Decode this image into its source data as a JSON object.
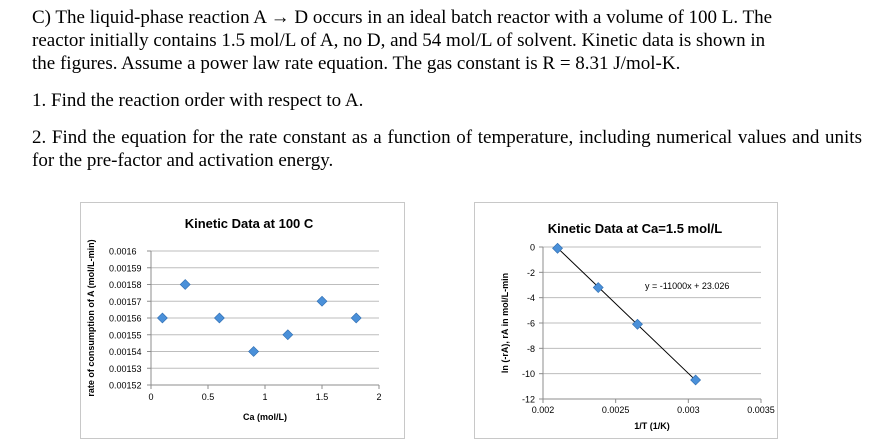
{
  "problem": {
    "intro_lines": [
      "C) The liquid-phase reaction A → D occurs in an ideal batch reactor with a volume of 100 L. The",
      "reactor initially contains 1.5 mol/L of A, no D, and 54 mol/L of solvent.  Kinetic data is shown in",
      "the figures.  Assume a power law rate equation.  The gas constant is R = 8.31 J/mol-K."
    ],
    "question1": "1. Find the reaction order with respect to A.",
    "question2": "2. Find the equation for the rate constant as a function of temperature, including numerical values and units for the pre-factor and activation energy."
  },
  "chart_data": [
    {
      "type": "scatter",
      "title": "Kinetic Data at 100 C",
      "xlabel": "Ca (mol/L)",
      "ylabel": "rate of consumption of A (mol/L-min)",
      "xlim": [
        0,
        2
      ],
      "ylim": [
        0.00152,
        0.0016
      ],
      "x_ticks": [
        "0",
        "0.5",
        "1",
        "1.5",
        "2"
      ],
      "y_ticks": [
        "0.00152",
        "0.00153",
        "0.00154",
        "0.00155",
        "0.00156",
        "0.00157",
        "0.00158",
        "0.00159",
        "0.0016"
      ],
      "grid": true,
      "legend": false,
      "marker_color": "#4a90d9",
      "series": [
        {
          "x": [
            0.1,
            0.3,
            0.6,
            0.9,
            1.2,
            1.5,
            1.8
          ],
          "y": [
            0.00156,
            0.00158,
            0.00156,
            0.00154,
            0.00155,
            0.00157,
            0.00156
          ]
        }
      ]
    },
    {
      "type": "scatter",
      "title": "Kinetic Data at Ca=1.5 mol/L",
      "xlabel": "1/T (1/K)",
      "ylabel": "ln (-rA), rA in mol/L-min",
      "xlim": [
        0.002,
        0.0035
      ],
      "ylim": [
        -12,
        0
      ],
      "x_ticks": [
        "0.002",
        "0.0025",
        "0.003",
        "0.0035"
      ],
      "y_ticks": [
        "0",
        "-2",
        "-4",
        "-6",
        "-8",
        "-10",
        "-12"
      ],
      "grid": true,
      "legend": false,
      "marker_color": "#4a90d9",
      "trendline": {
        "slope": -11000,
        "intercept": 23.026,
        "label": "y = -11000x + 23.026",
        "x_range": [
          0.0021,
          0.00305
        ]
      },
      "series": [
        {
          "x": [
            0.0021,
            0.00238,
            0.00265,
            0.00305
          ],
          "y": [
            -0.1,
            -3.2,
            -6.1,
            -10.5
          ]
        }
      ]
    }
  ]
}
